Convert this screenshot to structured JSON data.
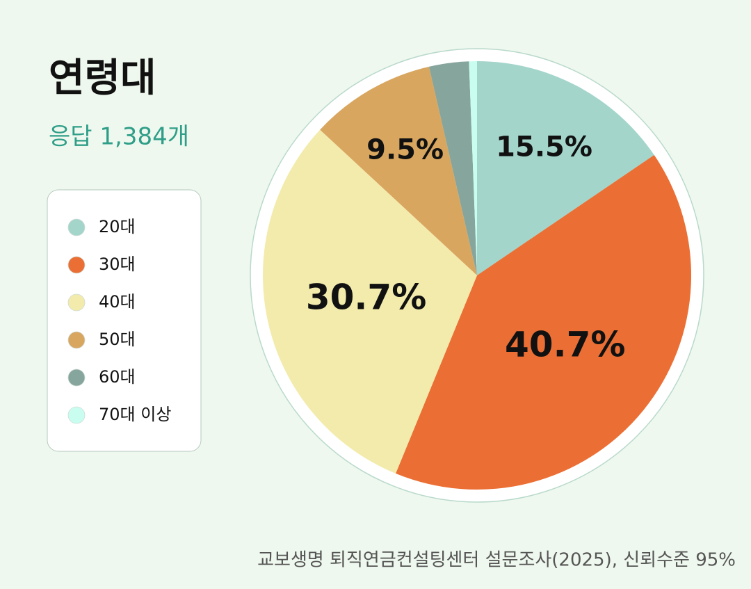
{
  "chart_data": {
    "type": "pie",
    "title": "연령대",
    "subtitle": "응답 1,384개",
    "source": "교보생명 퇴직연금컨설팅센터 설문조사(2025), 신뢰수준 95%",
    "categories": [
      "20대",
      "30대",
      "40대",
      "50대",
      "60대",
      "70대 이상"
    ],
    "values": [
      15.5,
      40.7,
      30.7,
      9.5,
      3.0,
      0.6
    ],
    "value_labels": [
      "15.5%",
      "40.7%",
      "30.7%",
      "9.5%",
      null,
      null
    ],
    "colors": [
      "#a3d5cb",
      "#eb6f34",
      "#f3ebac",
      "#d9a660",
      "#86a59c",
      "#c8fdf0"
    ],
    "legend": "left"
  }
}
